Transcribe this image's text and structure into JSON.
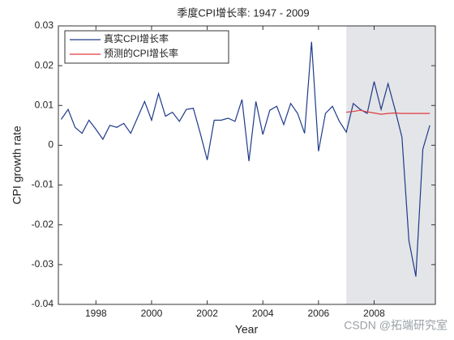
{
  "chart_data": {
    "type": "line",
    "title": "季度CPI增长率: 1947 - 2009",
    "xlabel": "Year",
    "ylabel": "CPI growth rate",
    "x": [
      1996.75,
      1997,
      1997.25,
      1997.5,
      1997.75,
      1998,
      1998.25,
      1998.5,
      1998.75,
      1999,
      1999.25,
      1999.5,
      1999.75,
      2000,
      2000.25,
      2000.5,
      2000.75,
      2001,
      2001.25,
      2001.5,
      2001.75,
      2002,
      2002.25,
      2002.5,
      2002.75,
      2003,
      2003.25,
      2003.5,
      2003.75,
      2004,
      2004.25,
      2004.5,
      2004.75,
      2005,
      2005.25,
      2005.5,
      2005.75,
      2006,
      2006.25,
      2006.5,
      2006.75,
      2007,
      2007.25,
      2007.5,
      2007.75,
      2008,
      2008.25,
      2008.5,
      2008.75,
      2009,
      2009.25,
      2009.5,
      2009.75,
      2010
    ],
    "series": [
      {
        "name": "真实CPI增长率",
        "color": "#1f3a8a",
        "values": [
          0.0065,
          0.009,
          0.0045,
          0.003,
          0.0063,
          0.004,
          0.0015,
          0.005,
          0.0045,
          0.0055,
          0.003,
          0.007,
          0.011,
          0.0063,
          0.013,
          0.0073,
          0.0083,
          0.006,
          0.009,
          0.0093,
          0.003,
          -0.0037,
          0.0063,
          0.0063,
          0.0068,
          0.006,
          0.0115,
          -0.004,
          0.011,
          0.0027,
          0.0088,
          0.0098,
          0.0052,
          0.0105,
          0.008,
          0.003,
          0.026,
          -0.0015,
          0.008,
          0.0098,
          0.006,
          0.0033,
          0.0105,
          0.009,
          0.008,
          0.016,
          0.009,
          0.0155,
          0.009,
          0.002,
          -0.024,
          -0.033,
          -0.001,
          0.005
        ]
      },
      {
        "name": "预测的CPI增长率",
        "color": "#e03a3e",
        "values": [
          null,
          null,
          null,
          null,
          null,
          null,
          null,
          null,
          null,
          null,
          null,
          null,
          null,
          null,
          null,
          null,
          null,
          null,
          null,
          null,
          null,
          null,
          null,
          null,
          null,
          null,
          null,
          null,
          null,
          null,
          null,
          null,
          null,
          null,
          null,
          null,
          null,
          null,
          null,
          null,
          null,
          0.0083,
          0.0085,
          0.0088,
          0.0084,
          0.0081,
          0.0078,
          0.008,
          0.0081,
          0.008,
          0.008,
          0.008,
          0.008,
          0.008
        ]
      }
    ],
    "xlim": [
      1996.65,
      2010.2
    ],
    "xticks": [
      1998,
      2000,
      2002,
      2004,
      2006,
      2008
    ],
    "ylim": [
      -0.04,
      0.03
    ],
    "yticks": [
      0.03,
      0.02,
      0.01,
      0,
      -0.01,
      -0.02,
      -0.03,
      -0.04
    ],
    "shade_from": 2007,
    "shade_color": "#e3e5e8",
    "legend": "upper left",
    "watermark": "CSDN @拓端研究室"
  }
}
